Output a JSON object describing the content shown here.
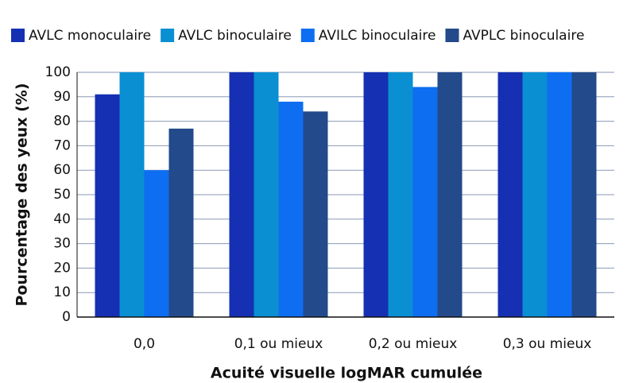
{
  "chart_data": {
    "type": "bar",
    "categories": [
      "0,0",
      "0,1 ou mieux",
      "0,2 ou mieux",
      "0,3 ou mieux"
    ],
    "series": [
      {
        "name": "AVLC monoculaire",
        "color": "#1530b3",
        "values": [
          91,
          100,
          100,
          100
        ]
      },
      {
        "name": "AVLC binoculaire",
        "color": "#0a8fd2",
        "values": [
          100,
          100,
          100,
          100
        ]
      },
      {
        "name": "AVILC binoculaire",
        "color": "#0d6ef2",
        "values": [
          60,
          88,
          94,
          100
        ]
      },
      {
        "name": "AVPLC binoculaire",
        "color": "#234a8a",
        "values": [
          77,
          84,
          100,
          100
        ]
      }
    ],
    "xlabel": "Acuité visuelle logMAR cumulée",
    "ylabel": "Pourcentage des yeux (%)",
    "ylim": [
      0,
      100
    ],
    "yticks": [
      0,
      10,
      20,
      30,
      40,
      50,
      60,
      70,
      80,
      90,
      100
    ],
    "grid": true,
    "legend": "top"
  }
}
